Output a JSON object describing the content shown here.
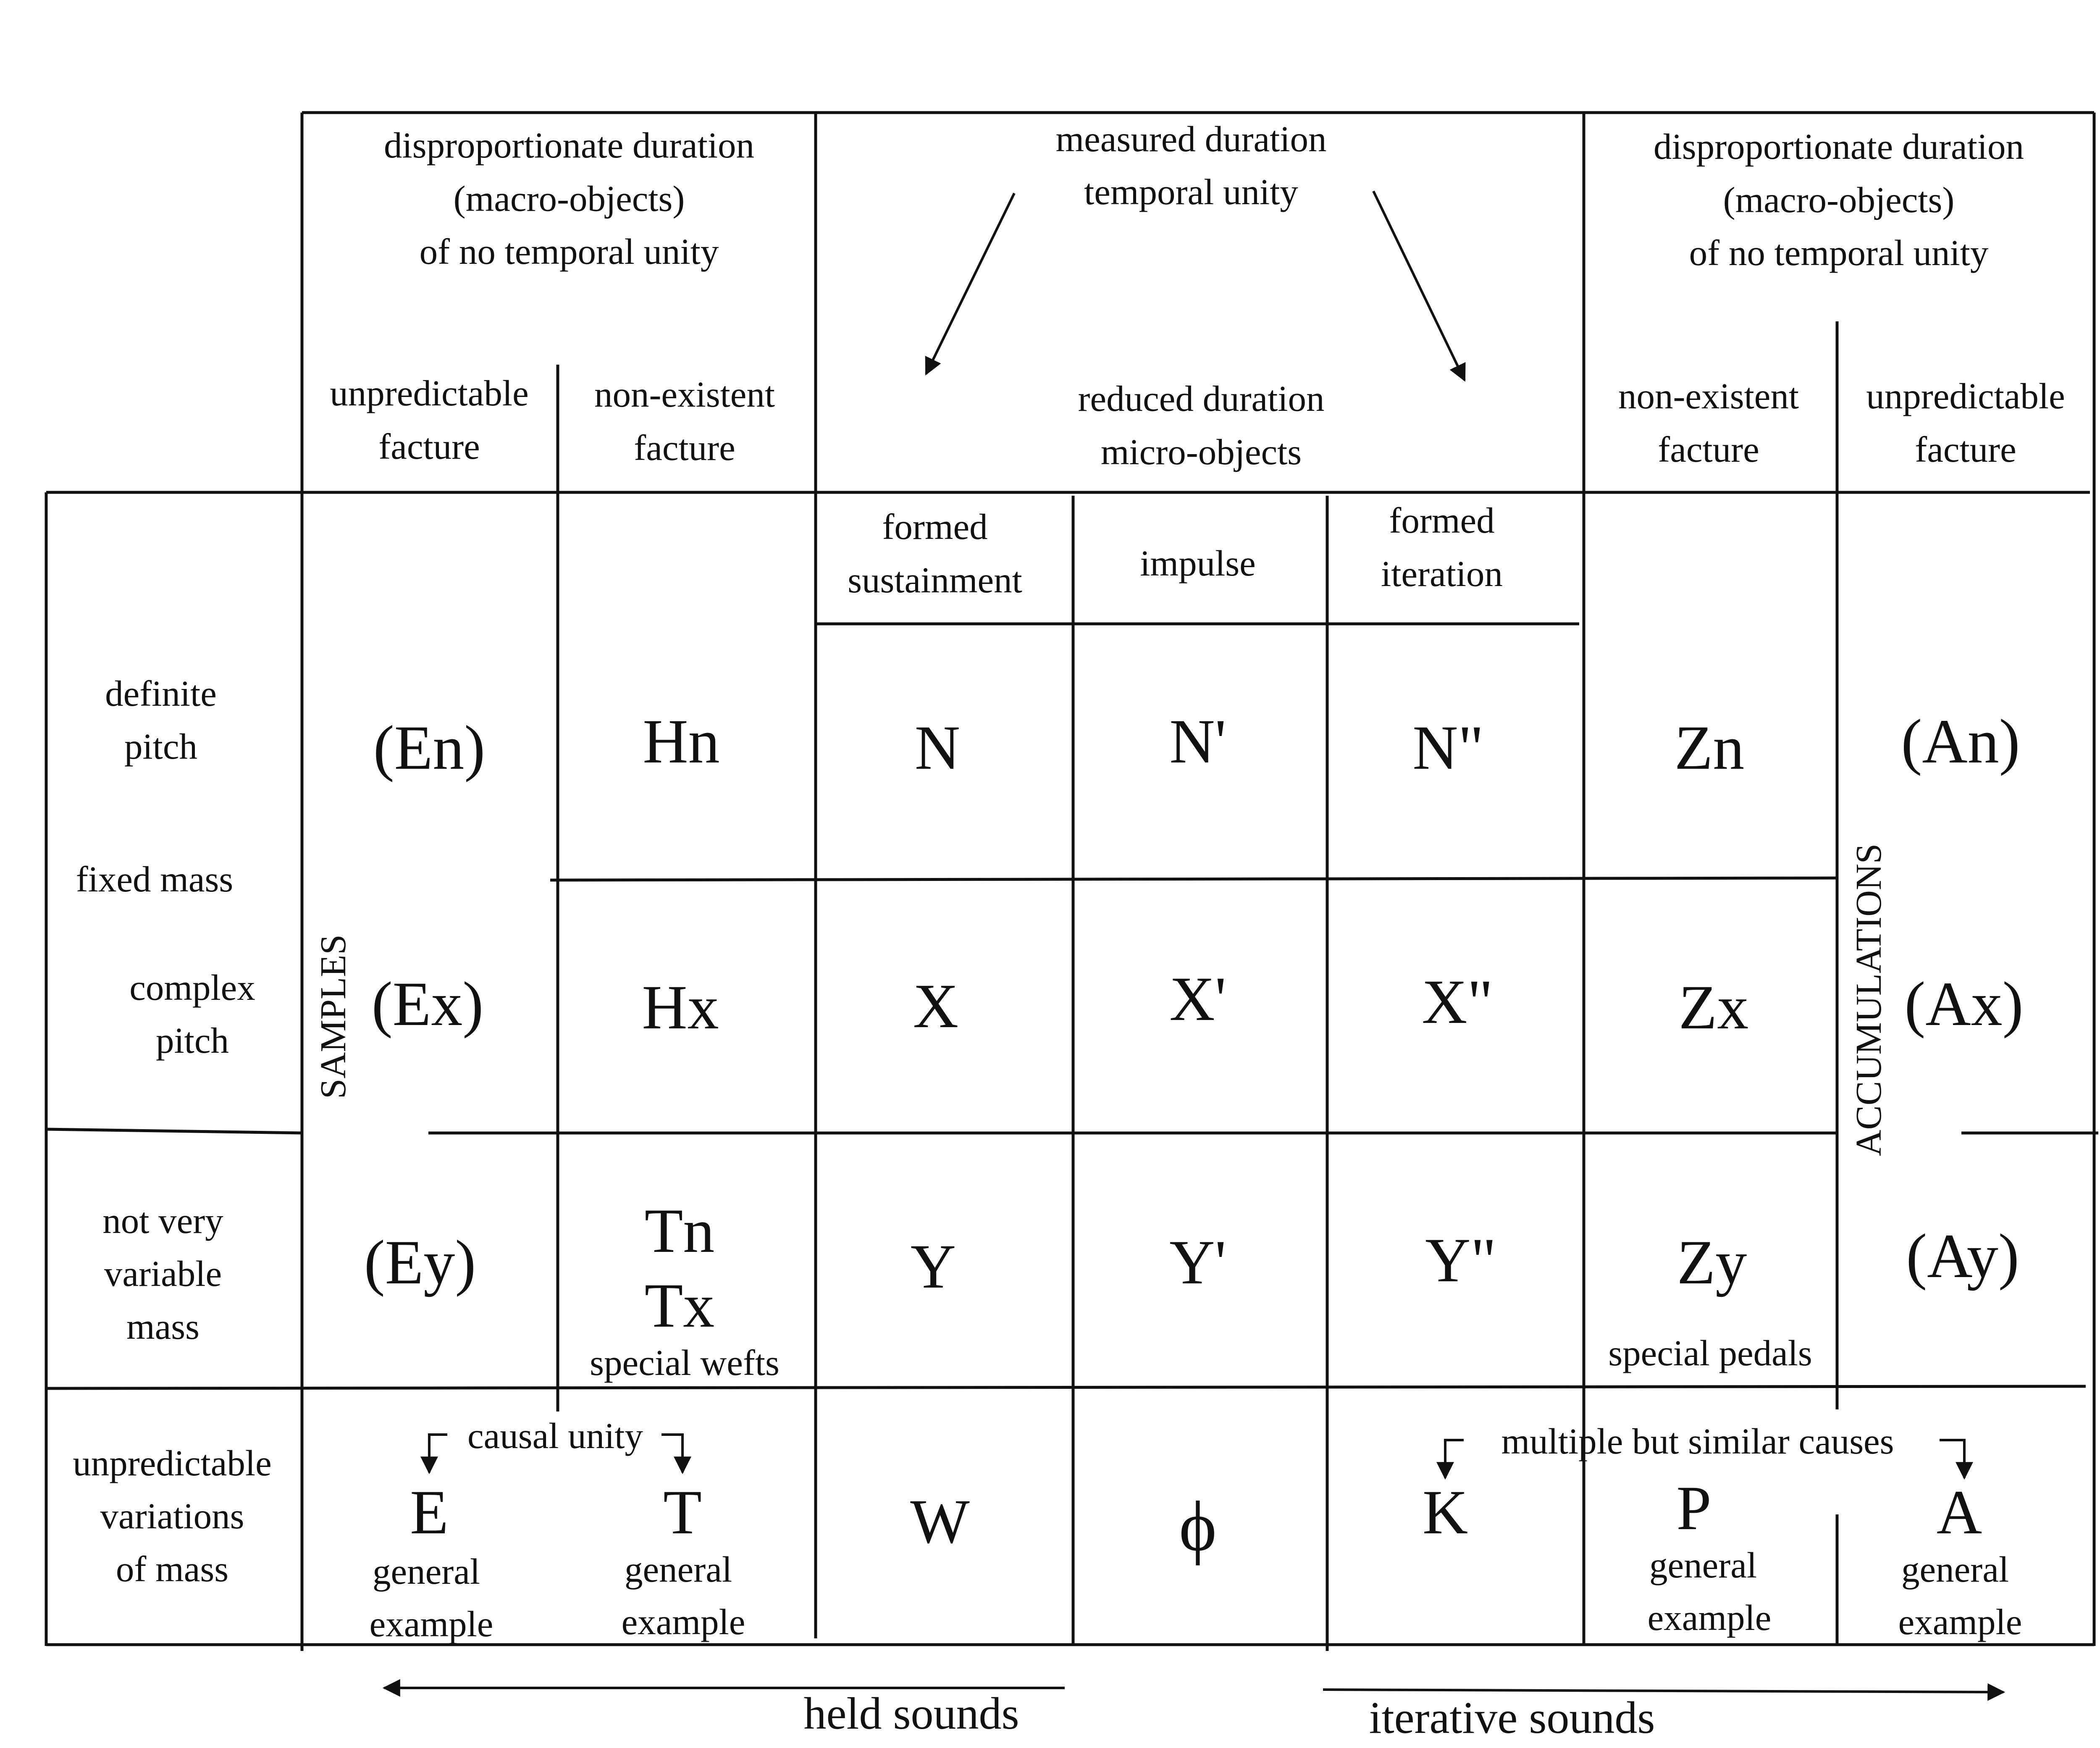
{
  "header": {
    "left_top": [
      "disproportionate duration",
      "(macro-objects)",
      "of no temporal unity"
    ],
    "center_top": [
      "measured duration",
      "temporal unity"
    ],
    "right_top": [
      "disproportionate duration",
      "(macro-objects)",
      "of no temporal unity"
    ],
    "left_sub_unpredictable": [
      "unpredictable",
      "facture"
    ],
    "left_sub_nonexistent": [
      "non-existent",
      "facture"
    ],
    "center_sub": [
      "reduced duration",
      "micro-objects"
    ],
    "right_sub_nonexistent": [
      "non-existent",
      "facture"
    ],
    "right_sub_unpredictable": [
      "unpredictable",
      "facture"
    ]
  },
  "micro_columns": {
    "formed_sustainment": [
      "formed",
      "sustainment"
    ],
    "impulse": "impulse",
    "formed_iteration": [
      "formed",
      "iteration"
    ]
  },
  "row_labels": {
    "definite_pitch": [
      "definite",
      "pitch"
    ],
    "fixed_mass": "fixed mass",
    "complex_pitch": [
      "complex",
      "pitch"
    ],
    "not_very_variable_mass": [
      "not very",
      "variable",
      "mass"
    ],
    "unpredictable_variations": [
      "unpredictable",
      "variations",
      "of mass"
    ]
  },
  "vertical_labels": {
    "samples": "SAMPLES",
    "accumulations": "ACCUMULATIONS"
  },
  "cells": {
    "definite": [
      "(En)",
      "Hn",
      "N",
      "N'",
      "N\"",
      "Zn",
      "(An)"
    ],
    "complex": [
      "(Ex)",
      "Hx",
      "X",
      "X'",
      "X\"",
      "Zx",
      "(Ax)"
    ],
    "variable": [
      "(Ey)",
      "Tn",
      "Tx",
      "Y",
      "Y'",
      "Y\"",
      "Zy",
      "(Ay)"
    ],
    "special_wefts": "special wefts",
    "special_pedals": "special pedals"
  },
  "bottom_row": {
    "causal_unity": "causal unity",
    "multiple_causes": "multiple but similar causes",
    "E": "E",
    "T": "T",
    "W": "W",
    "phi": "ϕ",
    "K": "K",
    "P": "P",
    "A": "A",
    "general": "general",
    "example": "example"
  },
  "footer": {
    "held_sounds": "held sounds",
    "iterative_sounds": "iterative sounds"
  }
}
